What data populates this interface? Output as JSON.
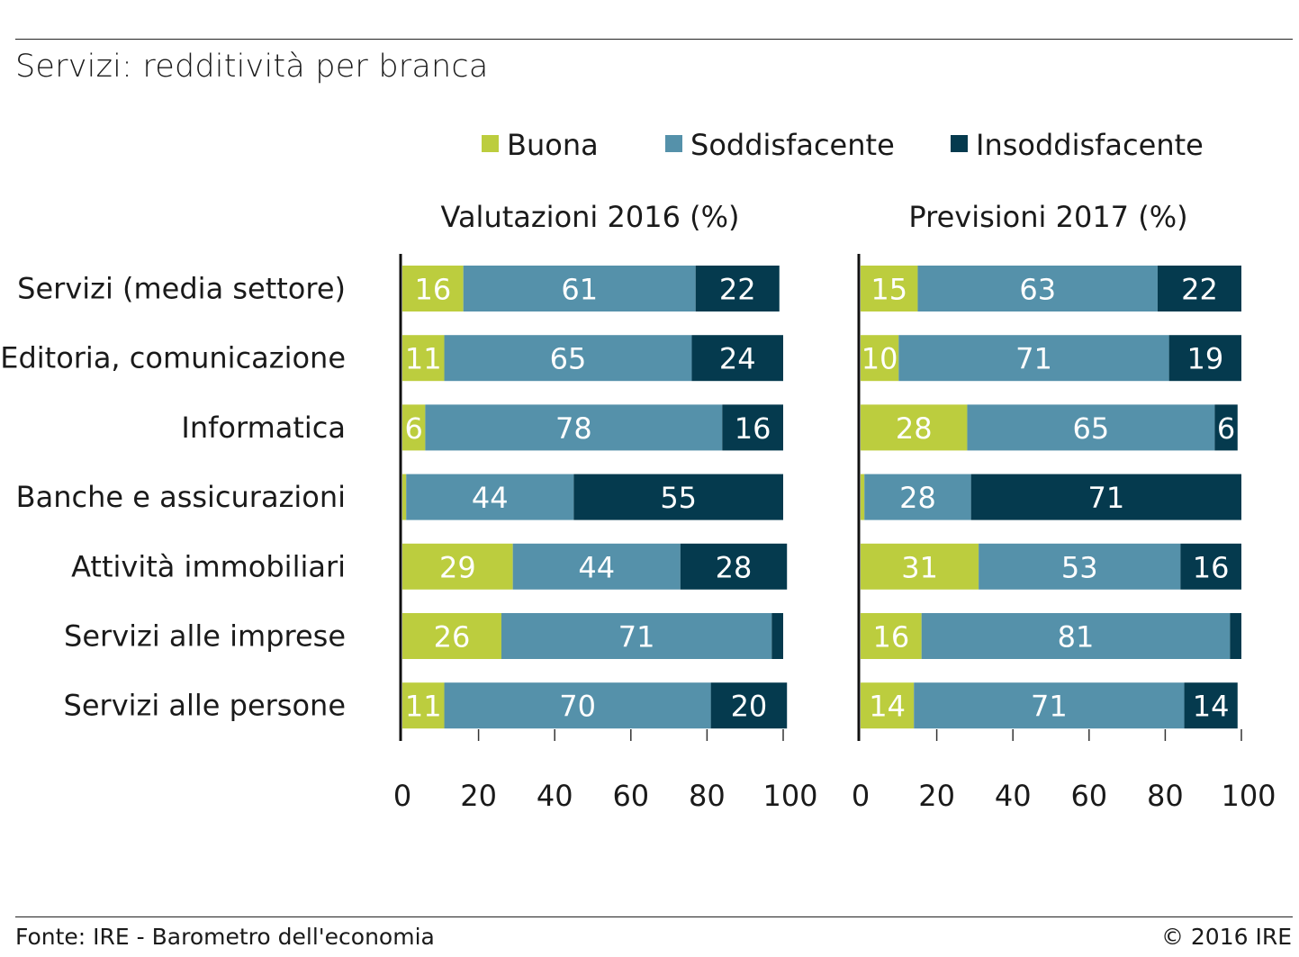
{
  "title": "Servizi: redditività per branca",
  "footer": {
    "source": "Fonte: IRE - Barometro dell'economia",
    "copyright": "© 2016 IRE"
  },
  "colors": {
    "Buona": "#bccd3e",
    "Soddisfacente": "#5591aa",
    "Insoddisfacente": "#053a4e",
    "label_light": "#ffffff",
    "label_dark": "#ffffff"
  },
  "chart_data": [
    {
      "type": "bar",
      "orientation": "horizontal",
      "stacked": true,
      "title": "Valutazioni 2016 (%)",
      "categories": [
        "Servizi (media settore)",
        "Editoria, comunicazione",
        "Informatica",
        "Banche e assicurazioni",
        "Attività immobiliari",
        "Servizi alle imprese",
        "Servizi alle persone"
      ],
      "series": [
        {
          "name": "Buona",
          "values": [
            16,
            11,
            6,
            1,
            29,
            26,
            11
          ],
          "labels": [
            "16",
            "11",
            "6",
            "",
            "29",
            "26",
            "11"
          ]
        },
        {
          "name": "Soddisfacente",
          "values": [
            61,
            65,
            78,
            44,
            44,
            71,
            70
          ],
          "labels": [
            "61",
            "65",
            "78",
            "44",
            "44",
            "71",
            "70"
          ]
        },
        {
          "name": "Insoddisfacente",
          "values": [
            22,
            24,
            16,
            55,
            28,
            3,
            20
          ],
          "labels": [
            "22",
            "24",
            "16",
            "55",
            "28",
            "",
            "20"
          ]
        }
      ],
      "xlim": [
        0,
        100
      ],
      "xticks": [
        "0",
        "20",
        "40",
        "60",
        "80",
        "100"
      ],
      "legend": "top",
      "grid": false
    },
    {
      "type": "bar",
      "orientation": "horizontal",
      "stacked": true,
      "title": "Previsioni 2017 (%)",
      "categories": [
        "Servizi (media settore)",
        "Editoria, comunicazione",
        "Informatica",
        "Banche e assicurazioni",
        "Attività immobiliari",
        "Servizi alle imprese",
        "Servizi alle persone"
      ],
      "series": [
        {
          "name": "Buona",
          "values": [
            15,
            10,
            28,
            1,
            31,
            16,
            14
          ],
          "labels": [
            "15",
            "10",
            "28",
            "",
            "31",
            "16",
            "14"
          ]
        },
        {
          "name": "Soddisfacente",
          "values": [
            63,
            71,
            65,
            28,
            53,
            81,
            71
          ],
          "labels": [
            "63",
            "71",
            "65",
            "28",
            "53",
            "81",
            "71"
          ]
        },
        {
          "name": "Insoddisfacente",
          "values": [
            22,
            19,
            6,
            71,
            16,
            3,
            14
          ],
          "labels": [
            "22",
            "19",
            "6",
            "71",
            "16",
            "",
            "14"
          ]
        }
      ],
      "xlim": [
        0,
        100
      ],
      "xticks": [
        "0",
        "20",
        "40",
        "60",
        "80",
        "100"
      ],
      "legend": "top",
      "grid": false
    }
  ]
}
